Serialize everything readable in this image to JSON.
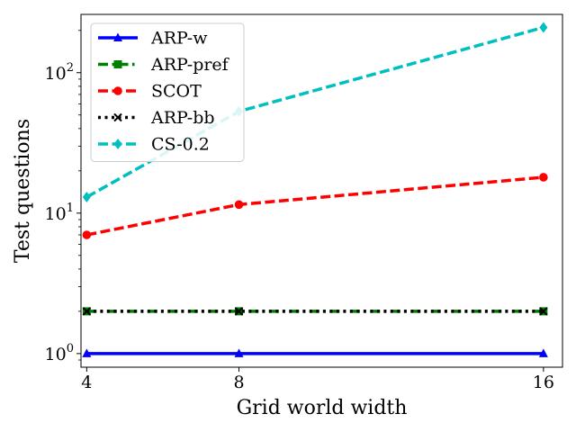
{
  "chart_data": {
    "type": "line",
    "xlabel": "Grid world width",
    "ylabel": "Test questions",
    "x": [
      4,
      8,
      16
    ],
    "x_ticks": [
      "4",
      "8",
      "16"
    ],
    "xlim": [
      3.85,
      16.5
    ],
    "yscale": "log",
    "ylim": [
      0.8,
      260
    ],
    "y_ticks": [
      {
        "value": 1,
        "base": "10",
        "exp": "0"
      },
      {
        "value": 10,
        "base": "10",
        "exp": "1"
      },
      {
        "value": 100,
        "base": "10",
        "exp": "2"
      }
    ],
    "grid": false,
    "legend_position": "upper-left",
    "series": [
      {
        "name": "ARP-w",
        "values": [
          1,
          1,
          1
        ],
        "color": "#0000ff",
        "dash": "solid",
        "marker": "triangle"
      },
      {
        "name": "ARP-pref",
        "values": [
          2,
          2,
          2
        ],
        "color": "#008000",
        "dash": "dashdot",
        "marker": "square"
      },
      {
        "name": "SCOT",
        "values": [
          7,
          11.5,
          18
        ],
        "color": "#ff0000",
        "dash": "dashed",
        "marker": "circle"
      },
      {
        "name": "ARP-bb",
        "values": [
          2,
          2,
          2
        ],
        "color": "#000000",
        "dash": "dotted",
        "marker": "x"
      },
      {
        "name": "CS-0.2",
        "values": [
          13,
          53,
          210
        ],
        "color": "#00bfbf",
        "dash": "dashed",
        "marker": "diamond"
      }
    ]
  }
}
